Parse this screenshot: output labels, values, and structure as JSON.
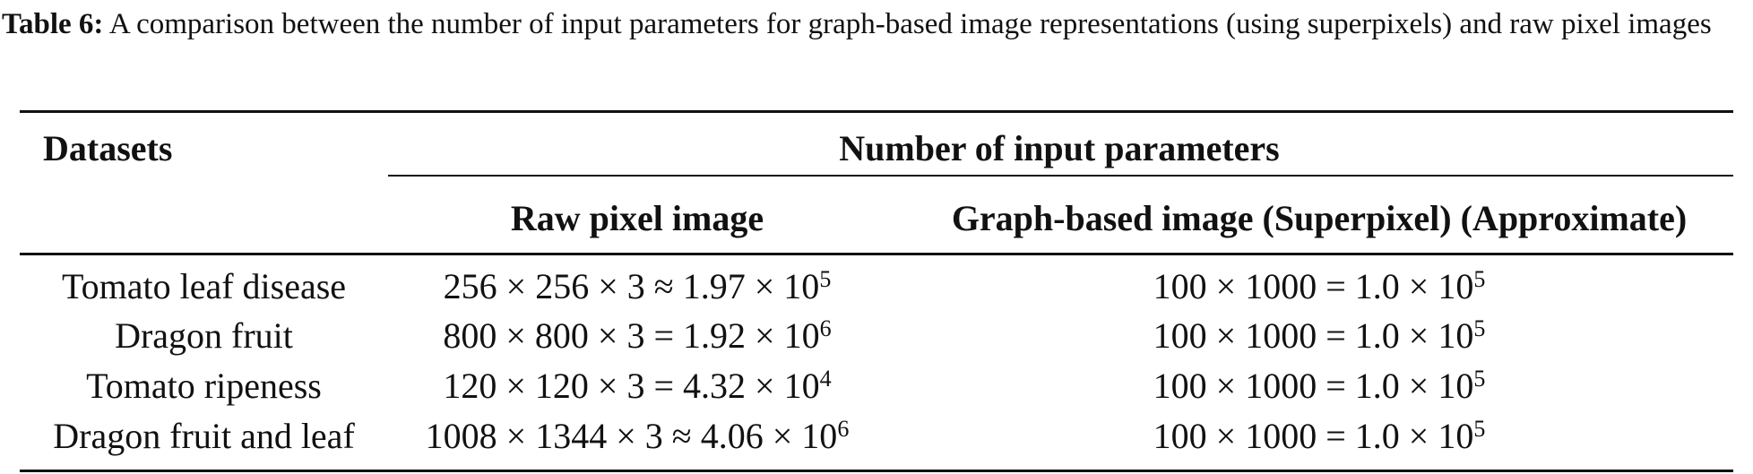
{
  "caption": {
    "label": "Table 6:",
    "text": "A comparison between the number of input parameters for graph-based image representations (using superpixels) and raw pixel images"
  },
  "table": {
    "headers": {
      "datasets": "Datasets",
      "group": "Number of input parameters",
      "raw": "Raw pixel image",
      "graph": "Graph-based image (Superpixel) (Approximate)"
    },
    "rows": [
      {
        "dataset": "Tomato leaf disease",
        "raw": "256 × 256 × 3 ≈ 1.97 × 10",
        "raw_exp": "5",
        "graph": "100 × 1000 = 1.0 × 10",
        "graph_exp": "5"
      },
      {
        "dataset": "Dragon fruit",
        "raw": "800 × 800 × 3 = 1.92 × 10",
        "raw_exp": "6",
        "graph": "100 × 1000 = 1.0 × 10",
        "graph_exp": "5"
      },
      {
        "dataset": "Tomato ripeness",
        "raw": "120 × 120 × 3 = 4.32 × 10",
        "raw_exp": "4",
        "graph": "100 × 1000 = 1.0 × 10",
        "graph_exp": "5"
      },
      {
        "dataset": "Dragon fruit and leaf",
        "raw": "1008 × 1344 × 3 ≈ 4.06 × 10",
        "raw_exp": "6",
        "graph": "100 × 1000 = 1.0 × 10",
        "graph_exp": "5"
      }
    ]
  }
}
